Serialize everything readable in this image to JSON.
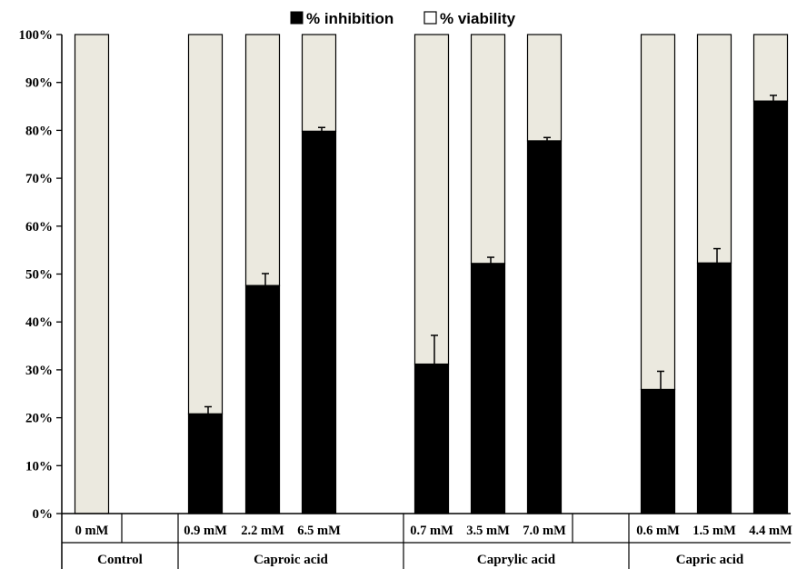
{
  "chart_data": {
    "type": "bar",
    "stacked": true,
    "ylim": [
      0,
      100
    ],
    "y_ticks": [
      "0%",
      "10%",
      "20%",
      "30%",
      "40%",
      "50%",
      "60%",
      "70%",
      "80%",
      "90%",
      "100%"
    ],
    "legend": {
      "position": "top",
      "inhibition_label": "% inhibition",
      "viability_label": "% viability"
    },
    "colors": {
      "inhibition": "#000000",
      "viability": "#ebe9df",
      "axis": "#000000"
    },
    "categories": [
      "0 mM",
      "0.9 mM",
      "2.2 mM",
      "6.5 mM",
      "0.7 mM",
      "3.5 mM",
      "7.0 mM",
      "0.6 mM",
      "1.5 mM",
      "4.4 mM"
    ],
    "groups": [
      {
        "label": "Control",
        "start": 0,
        "end": 0
      },
      {
        "label": "Caproic acid",
        "start": 1,
        "end": 3
      },
      {
        "label": "Caprylic acid",
        "start": 4,
        "end": 6
      },
      {
        "label": "Capric acid",
        "start": 7,
        "end": 9
      }
    ],
    "series": [
      {
        "name": "% inhibition",
        "values": [
          0,
          20.8,
          47.6,
          79.8,
          31.2,
          52.2,
          77.8,
          25.9,
          52.3,
          86.1
        ],
        "error": [
          0,
          1.5,
          2.5,
          0.8,
          6.0,
          1.3,
          0.7,
          3.8,
          3.0,
          1.2
        ]
      },
      {
        "name": "% viability",
        "values": [
          100,
          79.2,
          52.4,
          20.2,
          68.8,
          47.8,
          22.2,
          74.1,
          47.7,
          13.9
        ]
      }
    ]
  }
}
